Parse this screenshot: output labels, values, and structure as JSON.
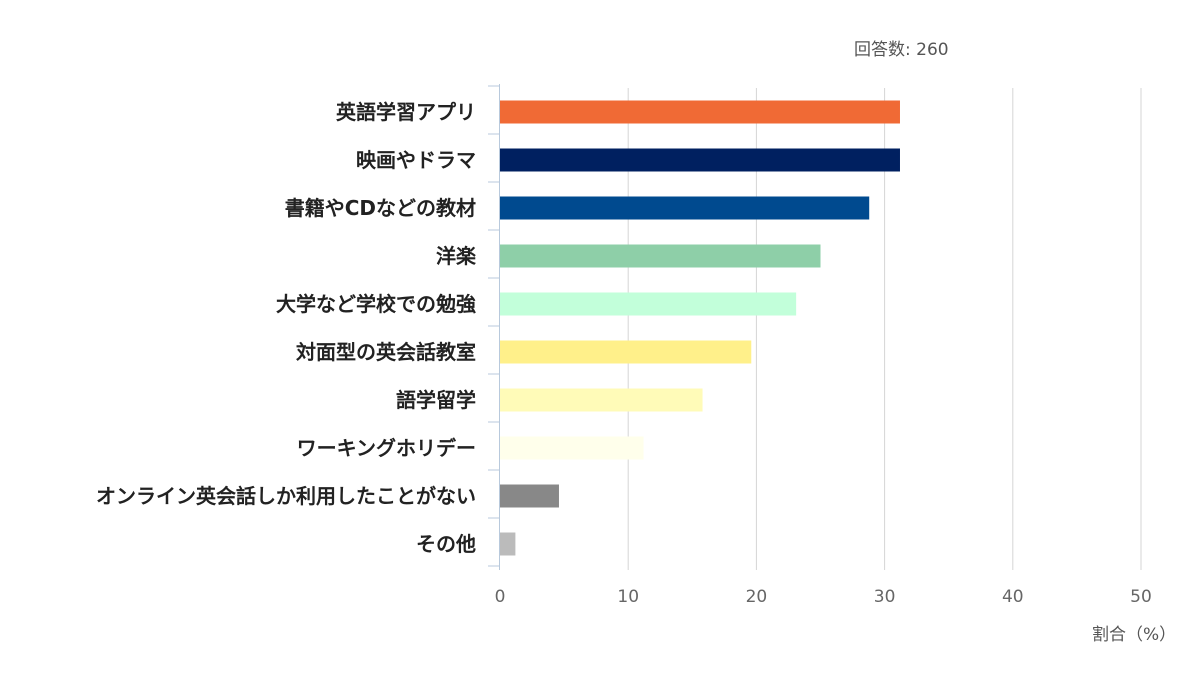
{
  "chart_data": {
    "type": "bar",
    "orientation": "horizontal",
    "note": "回答数: 260",
    "xlabel": "割合（%）",
    "xlim": [
      0,
      50
    ],
    "xticks": [
      0,
      10,
      20,
      30,
      40,
      50
    ],
    "grid": true,
    "categories": [
      "英語学習アプリ",
      "映画やドラマ",
      "書籍やCDなどの教材",
      "洋楽",
      "大学など学校での勉強",
      "対面型の英会話教室",
      "語学留学",
      "ワーキングホリデー",
      "オンライン英会話しか利用したことがない",
      "その他"
    ],
    "values": [
      31.2,
      31.2,
      28.8,
      25.0,
      23.1,
      19.6,
      15.8,
      11.2,
      4.6,
      1.2
    ],
    "colors": [
      "#F06A35",
      "#002060",
      "#004A8F",
      "#8ECFA8",
      "#C2FFDA",
      "#FFF08A",
      "#FFFBB8",
      "#FFFFEB",
      "#888888",
      "#BBBBBB"
    ],
    "grid_color": "#d5d5d5",
    "axis_color": "#b8c9dc"
  }
}
